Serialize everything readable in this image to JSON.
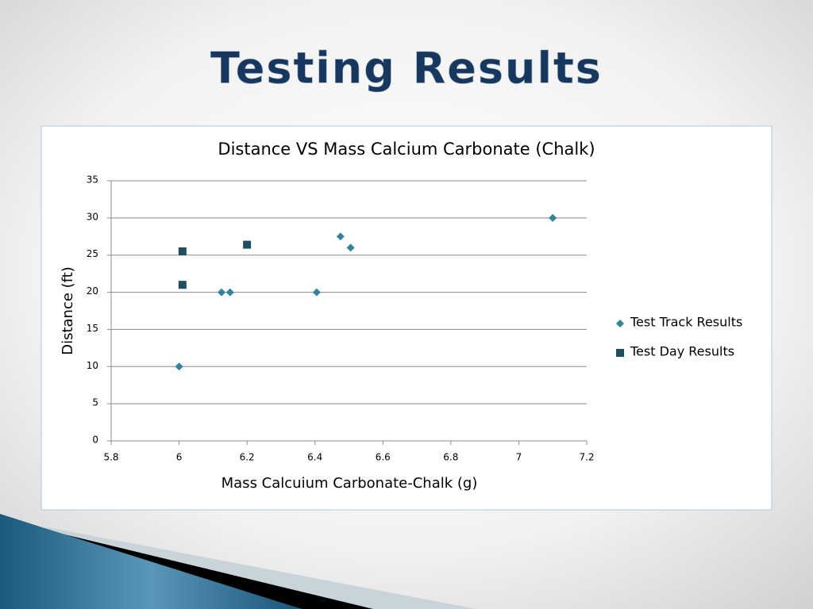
{
  "slide_title": "Testing Results",
  "chart_data": {
    "type": "scatter",
    "title": "Distance VS Mass Calcium Carbonate (Chalk)",
    "x_label": "Mass Calcuium Carbonate-Chalk (g)",
    "y_label": "Distance (ft)",
    "xlim": [
      5.8,
      7.2
    ],
    "xticks": [
      5.8,
      6,
      6.2,
      6.4,
      6.6,
      6.8,
      7,
      7.2
    ],
    "ylim": [
      0,
      35
    ],
    "yticks": [
      0,
      5,
      10,
      15,
      20,
      25,
      30,
      35
    ],
    "grid": true,
    "legend": "right",
    "series": [
      {
        "name": "Test Track Results",
        "color": "#31849b",
        "marker": "diamond",
        "x": [
          6.0,
          6.125,
          6.15,
          6.405,
          6.475,
          6.505,
          7.1
        ],
        "values": [
          10,
          20,
          20,
          20,
          27.5,
          26,
          30
        ]
      },
      {
        "name": "Test Day Results",
        "color": "#1f4e5f",
        "marker": "square",
        "x": [
          6.01,
          6.01,
          6.2
        ],
        "values": [
          25.5,
          21,
          26.4
        ]
      }
    ]
  }
}
